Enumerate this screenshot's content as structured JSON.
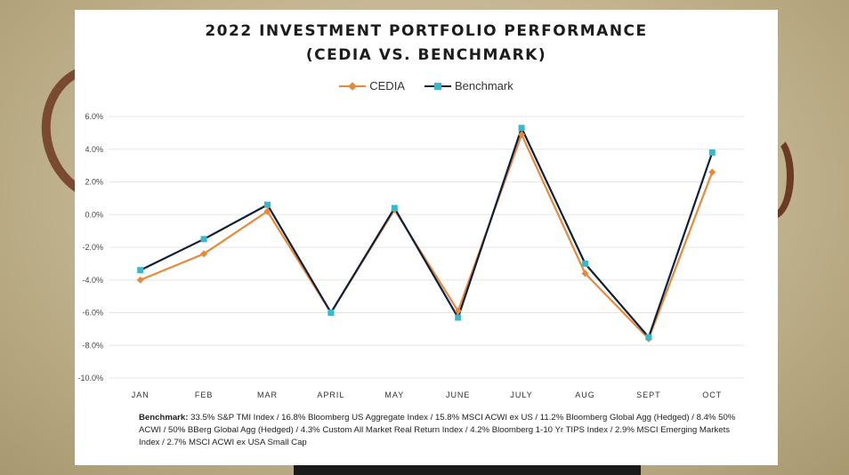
{
  "colors": {
    "cedia": "#e8893a",
    "benchmark": "#0c1f3d",
    "benchmark_marker": "#39b8c9",
    "gridline": "#e6e6e6"
  },
  "chart_data": {
    "type": "line",
    "title": "2022 INVESTMENT PORTFOLIO PERFORMANCE",
    "subtitle": "(CEDIA VS. BENCHMARK)",
    "categories": [
      "JAN",
      "FEB",
      "MAR",
      "APRIL",
      "MAY",
      "JUNE",
      "JULY",
      "AUG",
      "SEPT",
      "OCT"
    ],
    "series": [
      {
        "name": "CEDIA",
        "values": [
          -4.0,
          -2.4,
          0.2,
          -6.0,
          0.3,
          -5.9,
          4.9,
          -3.6,
          -7.6,
          2.6
        ]
      },
      {
        "name": "Benchmark",
        "values": [
          -3.4,
          -1.5,
          0.6,
          -6.0,
          0.4,
          -6.3,
          5.3,
          -3.0,
          -7.5,
          3.8
        ]
      }
    ],
    "yticks": [
      "6.0%",
      "4.0%",
      "2.0%",
      "0.0%",
      "-2.0%",
      "-4.0%",
      "-6.0%",
      "-8.0%",
      "-10.0%"
    ],
    "ylim": [
      -10,
      6
    ],
    "xlabel": "",
    "ylabel": "",
    "grid": "horizontal",
    "legend_position": "top-center"
  },
  "footnote": {
    "label": "Benchmark:",
    "text": " 33.5% S&P TMI Index / 16.8% Bloomberg US Aggregate Index / 15.8% MSCI ACWI ex US / 11.2% Bloomberg Global Agg (Hedged) / 8.4% 50% ACWI / 50% BBerg Global Agg (Hedged) / 4.3% Custom All Market Real Return Index / 4.2% Bloomberg 1-10 Yr TIPS Index / 2.9% MSCI Emerging Markets Index / 2.7% MSCI ACWI ex USA Small Cap"
  }
}
